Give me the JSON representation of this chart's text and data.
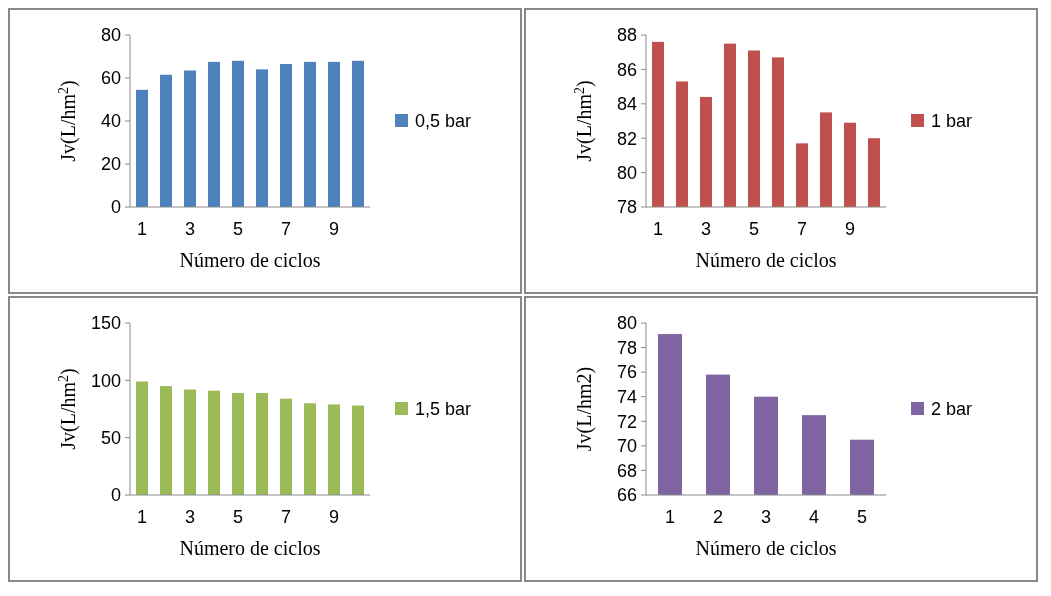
{
  "chart_data": [
    {
      "type": "bar",
      "xlabel": "Número de ciclos",
      "ylabel": "Jv(L/hm$^{2}$)",
      "categories": [
        "1",
        null,
        "3",
        null,
        "5",
        null,
        "7",
        null,
        "9",
        null
      ],
      "series": [
        {
          "name": "0,5 bar",
          "color": "#4f81bd",
          "values": [
            54.5,
            61.5,
            63.5,
            67.5,
            68,
            64,
            66.5,
            67.5,
            67.5,
            68
          ]
        }
      ],
      "ylim": [
        0,
        80
      ],
      "yticks": [
        0,
        20,
        40,
        60,
        80
      ],
      "legend": "right"
    },
    {
      "type": "bar",
      "xlabel": "Número de ciclos",
      "ylabel": "Jv(L/hm$^{2}$)",
      "categories": [
        "1",
        null,
        "3",
        null,
        "5",
        null,
        "7",
        null,
        "9",
        null
      ],
      "series": [
        {
          "name": "1 bar",
          "color": "#c0504d",
          "values": [
            87.6,
            85.3,
            84.4,
            87.5,
            87.1,
            86.7,
            81.7,
            83.5,
            82.9,
            82.0
          ]
        }
      ],
      "ylim": [
        78,
        88
      ],
      "yticks": [
        78,
        80,
        82,
        84,
        86,
        88
      ],
      "legend": "right"
    },
    {
      "type": "bar",
      "xlabel": "Número de ciclos",
      "ylabel": "Jv(L/hm$^{2}$)",
      "categories": [
        "1",
        null,
        "3",
        null,
        "5",
        null,
        "7",
        null,
        "9",
        null
      ],
      "series": [
        {
          "name": "1,5 bar",
          "color": "#9bbb59",
          "values": [
            99,
            95,
            92,
            91,
            89,
            89,
            84,
            80,
            79,
            78
          ]
        }
      ],
      "ylim": [
        0,
        150
      ],
      "yticks": [
        0,
        50,
        100,
        150
      ],
      "legend": "right"
    },
    {
      "type": "bar",
      "xlabel": "Número de ciclos",
      "ylabel": "Jv(L/hm2)",
      "categories": [
        "1",
        "2",
        "3",
        "4",
        "5"
      ],
      "series": [
        {
          "name": "2 bar",
          "color": "#8064a2",
          "values": [
            79.1,
            75.8,
            74.0,
            72.5,
            70.5
          ]
        }
      ],
      "ylim": [
        66,
        80
      ],
      "yticks": [
        66,
        68,
        70,
        72,
        74,
        76,
        78,
        80
      ],
      "legend": "right"
    }
  ]
}
